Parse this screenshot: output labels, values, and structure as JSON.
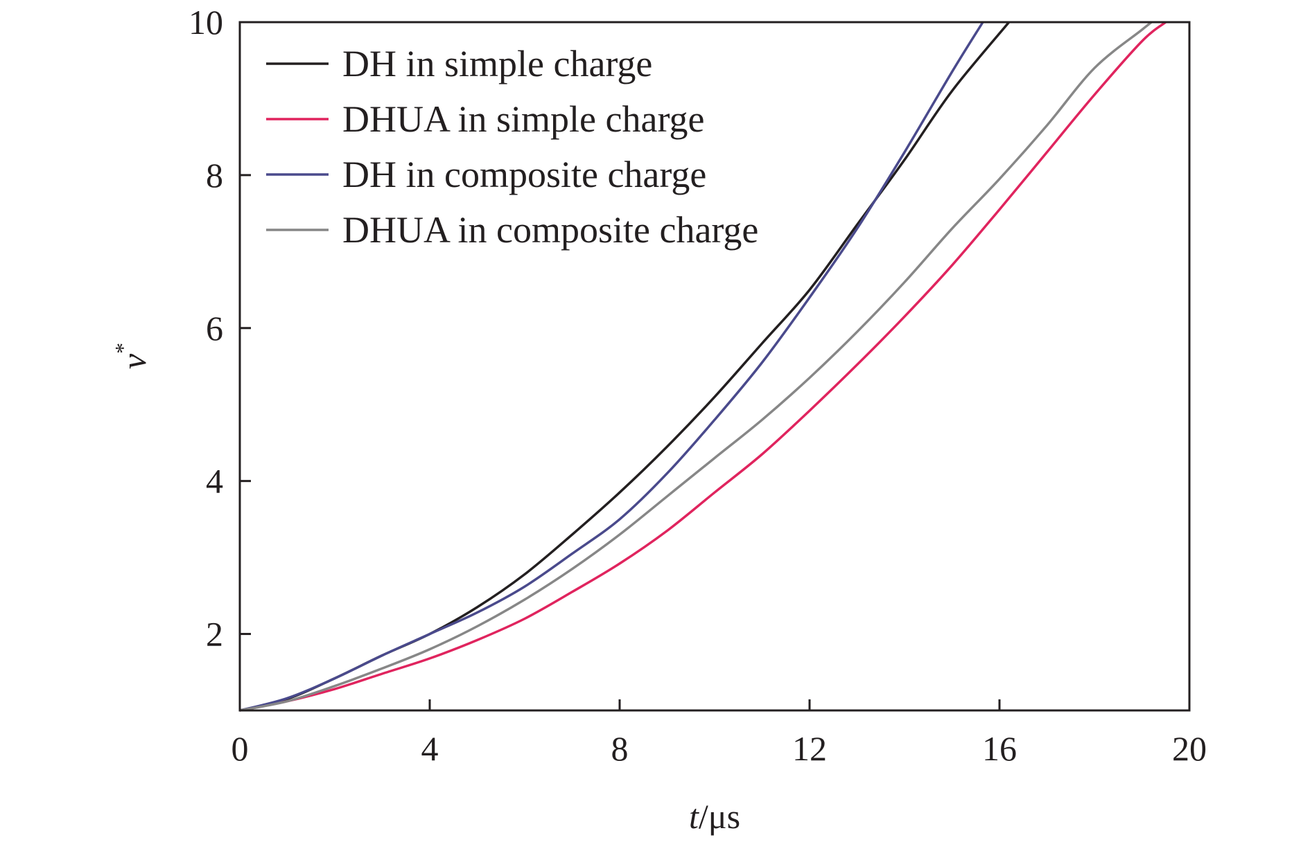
{
  "chart_data": {
    "type": "line",
    "xlabel": {
      "var": "t",
      "unit": "/μs"
    },
    "ylabel": {
      "var": "v",
      "sup": "*"
    },
    "xlim": [
      0,
      20
    ],
    "ylim": [
      1,
      10
    ],
    "xticks": [
      0,
      4,
      8,
      12,
      16,
      20
    ],
    "yticks": [
      2,
      4,
      6,
      8,
      10
    ],
    "xtick_labels": [
      "0",
      "4",
      "8",
      "12",
      "16",
      "20"
    ],
    "ytick_labels": [
      "2",
      "4",
      "6",
      "8",
      "10"
    ],
    "grid": false,
    "legend_position": "top-left",
    "series": [
      {
        "name": "DH in simple charge",
        "color": "#231f20",
        "x": [
          0,
          1,
          2,
          3,
          4,
          5,
          6,
          7,
          8,
          9,
          10,
          11,
          12,
          13,
          14,
          15,
          16.2
        ],
        "y": [
          1.0,
          1.15,
          1.42,
          1.72,
          2.0,
          2.35,
          2.78,
          3.3,
          3.85,
          4.45,
          5.1,
          5.8,
          6.5,
          7.35,
          8.2,
          9.1,
          10.0
        ]
      },
      {
        "name": "DHUA in simple charge",
        "color": "#e0245e",
        "x": [
          0,
          1,
          2,
          3,
          4,
          5,
          6,
          7,
          8,
          9,
          10,
          11,
          12,
          13,
          14,
          15,
          16,
          17,
          18,
          19,
          19.5
        ],
        "y": [
          1.0,
          1.12,
          1.28,
          1.48,
          1.68,
          1.92,
          2.2,
          2.55,
          2.92,
          3.35,
          3.85,
          4.35,
          4.92,
          5.52,
          6.15,
          6.82,
          7.55,
          8.3,
          9.05,
          9.75,
          10.0
        ]
      },
      {
        "name": "DH in composite charge",
        "color": "#4a4a8c",
        "x": [
          0,
          1,
          2,
          3,
          4,
          5,
          6,
          7,
          8,
          9,
          10,
          11,
          12,
          13,
          14,
          15,
          15.65
        ],
        "y": [
          1.0,
          1.16,
          1.42,
          1.72,
          2.0,
          2.28,
          2.62,
          3.05,
          3.5,
          4.1,
          4.8,
          5.55,
          6.4,
          7.3,
          8.3,
          9.35,
          10.0
        ]
      },
      {
        "name": "DHUA in composite charge",
        "color": "#878787",
        "x": [
          0,
          1,
          2,
          3,
          4,
          5,
          6,
          7,
          8,
          9,
          10,
          11,
          12,
          13,
          14,
          15,
          16,
          17,
          18,
          19,
          19.2
        ],
        "y": [
          1.0,
          1.12,
          1.32,
          1.55,
          1.8,
          2.1,
          2.45,
          2.85,
          3.3,
          3.8,
          4.3,
          4.8,
          5.35,
          5.95,
          6.6,
          7.3,
          7.95,
          8.65,
          9.4,
          9.9,
          10.0
        ]
      }
    ]
  }
}
